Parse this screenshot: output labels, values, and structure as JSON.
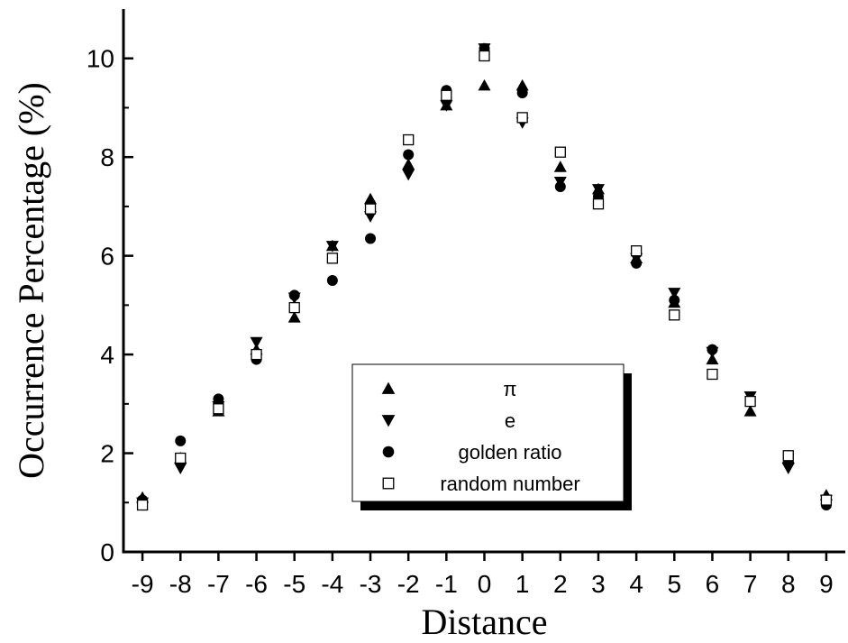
{
  "chart_data": {
    "type": "scatter",
    "xlabel": "Distance",
    "ylabel": "Occurrence Percentage (%)",
    "xlim": [
      -9.5,
      9.5
    ],
    "ylim": [
      0,
      11
    ],
    "xticks": [
      -9,
      -8,
      -7,
      -6,
      -5,
      -4,
      -3,
      -2,
      -1,
      0,
      1,
      2,
      3,
      4,
      5,
      6,
      7,
      8,
      9
    ],
    "yticks": [
      0,
      2,
      4,
      6,
      8,
      10
    ],
    "x": [
      -9,
      -8,
      -7,
      -6,
      -5,
      -4,
      -3,
      -2,
      -1,
      0,
      1,
      2,
      3,
      4,
      5,
      6,
      7,
      8,
      9
    ],
    "legend": "inside-bottom-center",
    "series": [
      {
        "name": "π",
        "marker": "triangle-up",
        "values": [
          1.1,
          1.9,
          2.85,
          4.1,
          4.75,
          6.2,
          7.15,
          7.85,
          9.05,
          9.45,
          9.45,
          7.8,
          7.35,
          5.95,
          5.05,
          3.9,
          2.85,
          1.9,
          1.15
        ]
      },
      {
        "name": "e",
        "marker": "triangle-down",
        "values": [
          1.0,
          1.7,
          2.95,
          4.25,
          5.15,
          6.2,
          6.8,
          7.65,
          9.05,
          10.2,
          8.7,
          7.5,
          7.35,
          5.95,
          5.25,
          4.05,
          3.15,
          1.7,
          1.05
        ]
      },
      {
        "name": "golden ratio",
        "marker": "circle",
        "values": [
          1.05,
          2.25,
          3.1,
          3.9,
          5.2,
          5.5,
          6.35,
          8.05,
          9.35,
          10.2,
          9.3,
          7.4,
          7.2,
          5.85,
          5.1,
          4.1,
          3.05,
          1.95,
          0.95
        ]
      },
      {
        "name": "random number",
        "marker": "square-open",
        "values": [
          0.95,
          1.9,
          2.9,
          4.0,
          4.95,
          5.95,
          6.95,
          8.35,
          9.25,
          10.05,
          8.8,
          8.1,
          7.05,
          6.1,
          4.8,
          3.6,
          3.05,
          1.95,
          1.05
        ]
      }
    ]
  }
}
